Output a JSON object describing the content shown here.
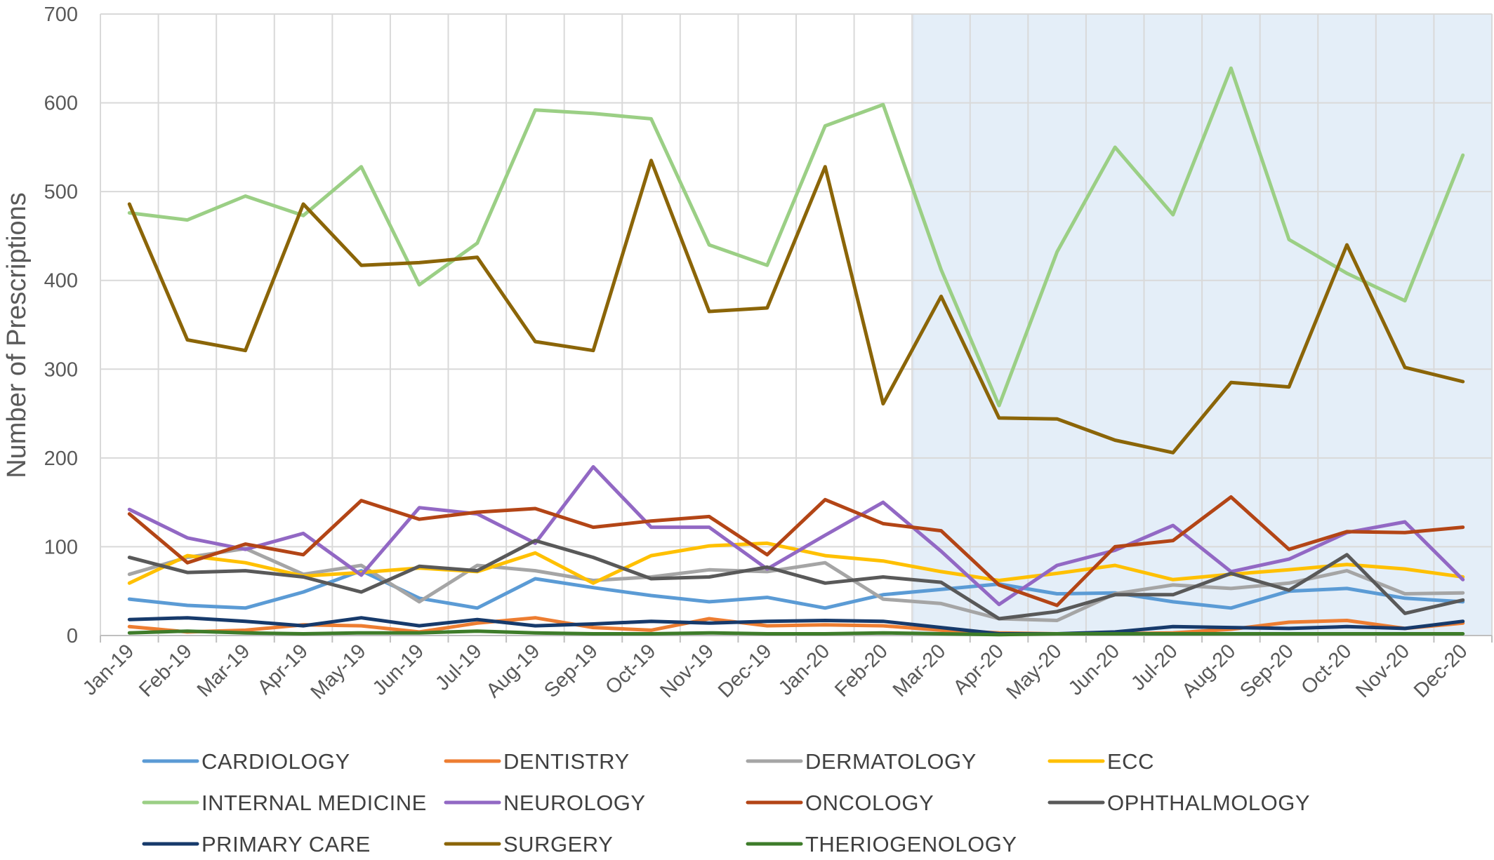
{
  "chart_data": {
    "type": "line",
    "title": "",
    "xlabel": "",
    "ylabel": "Number of Prescriptions",
    "ylim": [
      0,
      700
    ],
    "yticks": [
      "0",
      "100",
      "200",
      "300",
      "400",
      "500",
      "600",
      "700"
    ],
    "grid": "on",
    "legend_position": "bottom",
    "highlight_region": {
      "start": "Mar-20",
      "end": "Dec-20",
      "color": "#e4eef8"
    },
    "categories": [
      "Jan-19",
      "Feb-19",
      "Mar-19",
      "Apr-19",
      "May-19",
      "Jun-19",
      "Jul-19",
      "Aug-19",
      "Sep-19",
      "Oct-19",
      "Nov-19",
      "Dec-19",
      "Jan-20",
      "Feb-20",
      "Mar-20",
      "Apr-20",
      "May-20",
      "Jun-20",
      "Jul-20",
      "Aug-20",
      "Sep-20",
      "Oct-20",
      "Nov-20",
      "Dec-20"
    ],
    "series": [
      {
        "name": "CARDIOLOGY",
        "color": "#5b9bd5",
        "values": [
          41,
          34,
          31,
          49,
          73,
          42,
          31,
          64,
          54,
          45,
          38,
          43,
          31,
          46,
          52,
          58,
          47,
          48,
          38,
          31,
          50,
          53,
          42,
          38
        ]
      },
      {
        "name": "DENTISTRY",
        "color": "#ed7d31",
        "values": [
          10,
          4,
          6,
          12,
          11,
          4,
          14,
          20,
          9,
          6,
          19,
          11,
          12,
          11,
          6,
          3,
          2,
          2,
          3,
          7,
          15,
          17,
          8,
          14
        ]
      },
      {
        "name": "DERMATOLOGY",
        "color": "#a5a5a5",
        "values": [
          69,
          88,
          98,
          69,
          79,
          38,
          79,
          73,
          62,
          66,
          74,
          72,
          82,
          41,
          36,
          19,
          17,
          47,
          57,
          53,
          59,
          73,
          47,
          48
        ]
      },
      {
        "name": "ECC",
        "color": "#ffc000",
        "values": [
          59,
          90,
          82,
          67,
          71,
          76,
          72,
          93,
          59,
          90,
          101,
          104,
          90,
          84,
          72,
          62,
          70,
          79,
          63,
          69,
          74,
          80,
          75,
          66
        ]
      },
      {
        "name": "INTERNAL MEDICINE",
        "color": "#9bcf85",
        "values": [
          476,
          468,
          495,
          473,
          528,
          395,
          442,
          592,
          588,
          582,
          440,
          417,
          574,
          598,
          412,
          259,
          432,
          550,
          474,
          639,
          446,
          408,
          377,
          541
        ]
      },
      {
        "name": "NEUROLOGY",
        "color": "#9268c4",
        "values": [
          142,
          110,
          97,
          115,
          68,
          144,
          137,
          104,
          190,
          122,
          122,
          75,
          113,
          150,
          95,
          35,
          79,
          96,
          124,
          72,
          86,
          116,
          128,
          63
        ]
      },
      {
        "name": "ONCOLOGY",
        "color": "#b34516",
        "values": [
          137,
          82,
          103,
          91,
          152,
          131,
          139,
          143,
          122,
          129,
          134,
          91,
          153,
          126,
          118,
          57,
          34,
          100,
          107,
          156,
          97,
          117,
          116,
          122
        ]
      },
      {
        "name": "OPHTHALMOLOGY",
        "color": "#595959",
        "values": [
          88,
          71,
          73,
          66,
          49,
          78,
          73,
          107,
          88,
          64,
          66,
          77,
          59,
          66,
          60,
          19,
          27,
          46,
          46,
          70,
          51,
          91,
          25,
          40
        ]
      },
      {
        "name": "PRIMARY CARE",
        "color": "#173a6b",
        "values": [
          18,
          20,
          16,
          11,
          20,
          11,
          18,
          11,
          13,
          16,
          14,
          16,
          17,
          16,
          9,
          2,
          2,
          4,
          10,
          9,
          8,
          10,
          8,
          16
        ]
      },
      {
        "name": "SURGERY",
        "color": "#8b6508",
        "values": [
          486,
          333,
          321,
          486,
          417,
          420,
          426,
          331,
          321,
          535,
          365,
          369,
          528,
          261,
          382,
          245,
          244,
          220,
          206,
          285,
          280,
          440,
          302,
          286
        ]
      },
      {
        "name": "THERIOGENOLOGY",
        "color": "#3e7c2a",
        "values": [
          3,
          5,
          3,
          2,
          3,
          3,
          5,
          3,
          2,
          2,
          3,
          2,
          2,
          3,
          2,
          1,
          2,
          2,
          2,
          2,
          2,
          2,
          2,
          2
        ]
      }
    ]
  }
}
